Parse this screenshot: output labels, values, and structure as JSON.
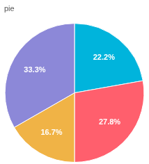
{
  "chart_data": {
    "type": "pie",
    "title": "pie",
    "values": [
      22.2,
      27.8,
      16.7,
      33.3
    ],
    "value_labels": [
      "22.2%",
      "27.8%",
      "16.7%",
      "33.3%"
    ],
    "colors": [
      "#00b4dc",
      "#ff5f6d",
      "#f0b346",
      "#8c88d8"
    ],
    "data_labels": true
  }
}
